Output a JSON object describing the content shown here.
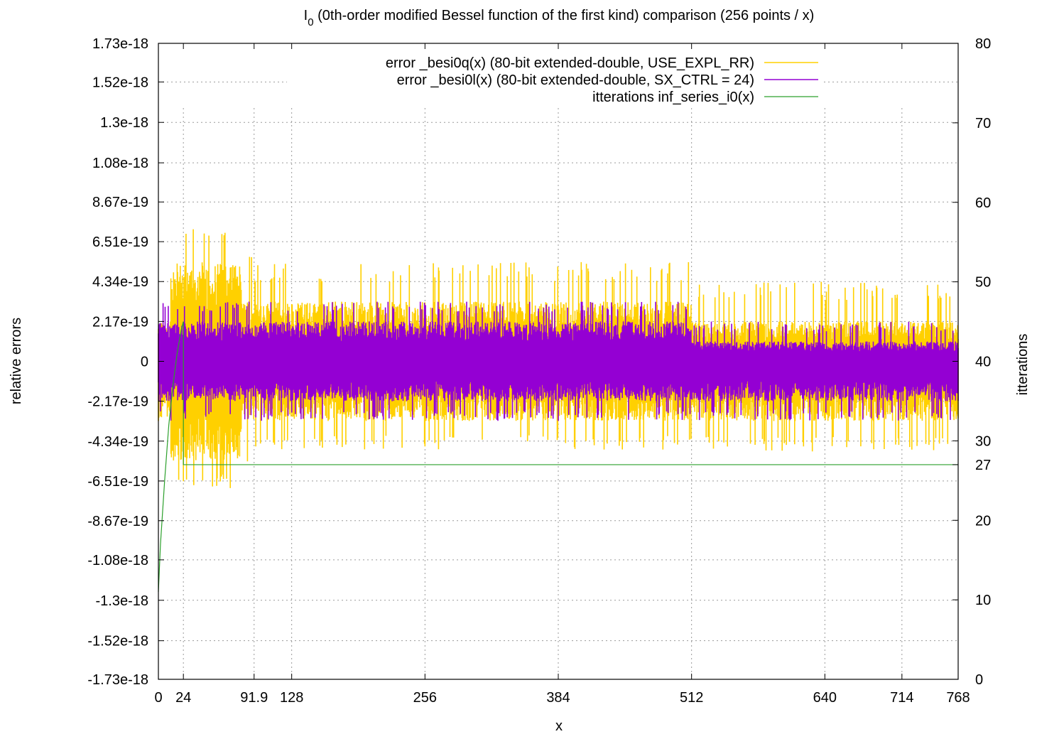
{
  "chart_data": {
    "type": "line",
    "title_main": "I",
    "title_sub": "0",
    "title_rest": " (0th-order modified Bessel function of the first kind) comparison (256 points / x)",
    "xlabel": "x",
    "ylabel": "relative errors",
    "y2label": "itterations",
    "xlim": [
      0,
      768
    ],
    "ylim": [
      -1.73e-18,
      1.73e-18
    ],
    "y2lim": [
      0,
      80
    ],
    "grid": true,
    "legend_position": "top-center",
    "x_ticks": [
      {
        "value": 0,
        "label": "0"
      },
      {
        "value": 24,
        "label": "24"
      },
      {
        "value": 91.9,
        "label": "91.9"
      },
      {
        "value": 128,
        "label": "128"
      },
      {
        "value": 256,
        "label": "256"
      },
      {
        "value": 384,
        "label": "384"
      },
      {
        "value": 512,
        "label": "512"
      },
      {
        "value": 640,
        "label": "640"
      },
      {
        "value": 714,
        "label": "714"
      },
      {
        "value": 768,
        "label": "768"
      }
    ],
    "y_ticks": [
      {
        "value": 1.73e-18,
        "label": "1.73e-18"
      },
      {
        "value": 1.52e-18,
        "label": "1.52e-18"
      },
      {
        "value": 1.3e-18,
        "label": "1.3e-18"
      },
      {
        "value": 1.08e-18,
        "label": "1.08e-18"
      },
      {
        "value": 8.67e-19,
        "label": "8.67e-19"
      },
      {
        "value": 6.51e-19,
        "label": "6.51e-19"
      },
      {
        "value": 4.34e-19,
        "label": "4.34e-19"
      },
      {
        "value": 2.17e-19,
        "label": "2.17e-19"
      },
      {
        "value": 0,
        "label": "0"
      },
      {
        "value": -2.17e-19,
        "label": "-2.17e-19"
      },
      {
        "value": -4.34e-19,
        "label": "-4.34e-19"
      },
      {
        "value": -6.51e-19,
        "label": "-6.51e-19"
      },
      {
        "value": -8.67e-19,
        "label": "-8.67e-19"
      },
      {
        "value": -1.08e-18,
        "label": "-1.08e-18"
      },
      {
        "value": -1.3e-18,
        "label": "-1.3e-18"
      },
      {
        "value": -1.52e-18,
        "label": "-1.52e-18"
      },
      {
        "value": -1.73e-18,
        "label": "-1.73e-18"
      }
    ],
    "y2_ticks": [
      {
        "value": 0,
        "label": "0"
      },
      {
        "value": 10,
        "label": "10"
      },
      {
        "value": 20,
        "label": "20"
      },
      {
        "value": 27,
        "label": "27"
      },
      {
        "value": 30,
        "label": "30"
      },
      {
        "value": 40,
        "label": "40"
      },
      {
        "value": 50,
        "label": "50"
      },
      {
        "value": 60,
        "label": "60"
      },
      {
        "value": 70,
        "label": "70"
      },
      {
        "value": 80,
        "label": "80"
      }
    ],
    "series": [
      {
        "name": "error _besi0q(x) (80-bit extended-double, USE_EXPL_RR)",
        "color": "#ffd000",
        "axis": "y",
        "style": "noise-band",
        "bands": [
          {
            "x": [
              0,
              12
            ],
            "upper": 2.17e-19,
            "lower": -3.25e-19,
            "spike_max": 3.25e-19,
            "spike_min": -4.34e-19
          },
          {
            "x": [
              12,
              80
            ],
            "upper": 5.4e-19,
            "lower": -5.4e-19,
            "spike_max": 7.6e-19,
            "spike_min": -6.9e-19
          },
          {
            "x": [
              80,
              92
            ],
            "upper": 3.25e-19,
            "lower": -3.25e-19,
            "spike_max": 6.51e-19,
            "spike_min": -5.8e-19
          },
          {
            "x": [
              92,
              512
            ],
            "upper": 3.25e-19,
            "lower": -3.25e-19,
            "spike_max": 5.4e-19,
            "spike_min": -4.8e-19
          },
          {
            "x": [
              512,
              768
            ],
            "upper": 2.17e-19,
            "lower": -3.25e-19,
            "spike_max": 4.34e-19,
            "spike_min": -4.9e-19
          }
        ]
      },
      {
        "name": "error _besi0l(x) (80-bit extended-double, SX_CTRL = 24)",
        "color": "#9400d3",
        "axis": "y",
        "style": "noise-band",
        "bands": [
          {
            "x": [
              0,
              512
            ],
            "upper": 2.17e-19,
            "lower": -2.17e-19,
            "spike_max": 3.25e-19,
            "spike_min": -3.25e-19
          },
          {
            "x": [
              512,
              768
            ],
            "upper": 1.08e-19,
            "lower": -2.17e-19,
            "spike_max": 2.17e-19,
            "spike_min": -3.25e-19
          }
        ]
      },
      {
        "name": "itterations inf_series_i0(x)",
        "color": "#2ca02c",
        "axis": "y2",
        "style": "line",
        "x": [
          0,
          2,
          6,
          10,
          14,
          18,
          22,
          24,
          768
        ],
        "y": [
          11,
          17,
          25,
          32,
          37,
          41,
          44,
          45,
          27
        ]
      }
    ]
  }
}
